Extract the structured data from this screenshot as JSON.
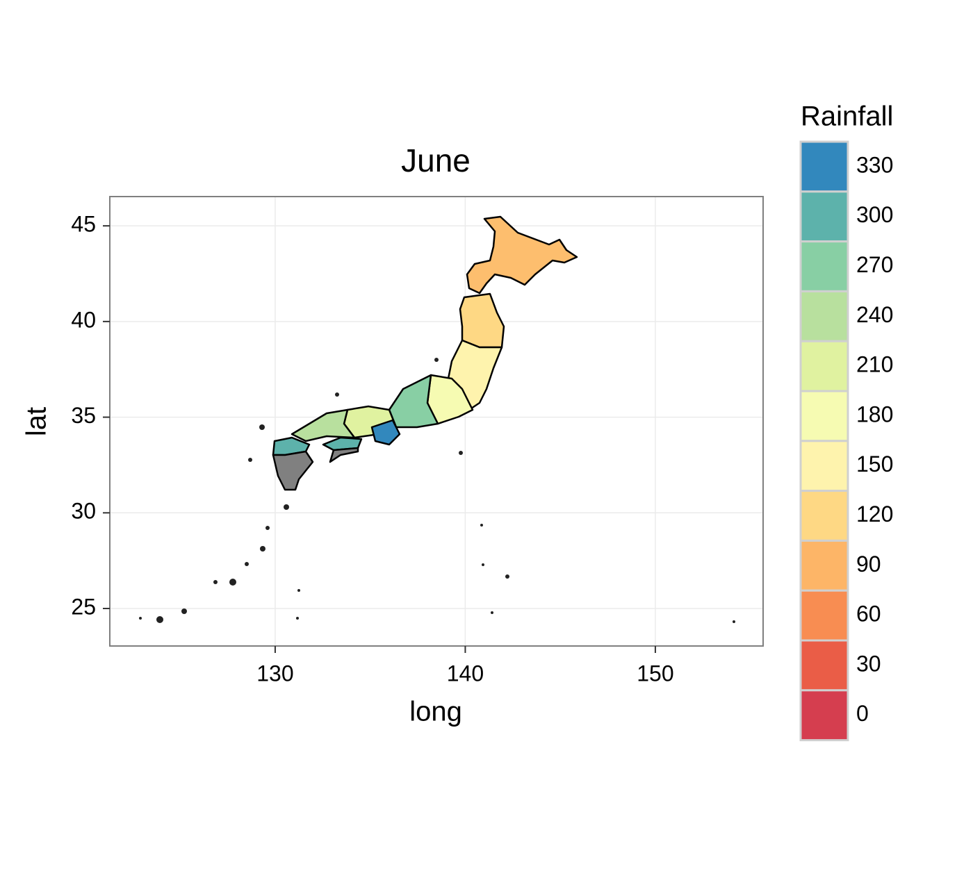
{
  "chart_data": {
    "type": "map",
    "title": "June",
    "xlabel": "long",
    "ylabel": "lat",
    "xlim": [
      121.3,
      155.67
    ],
    "ylim": [
      23.04,
      46.53
    ],
    "xticks": [
      130,
      140,
      150
    ],
    "yticks": [
      25,
      30,
      35,
      40,
      45
    ],
    "grid": true,
    "legend": {
      "title": "Rainfall",
      "breaks": [
        330,
        300,
        270,
        240,
        210,
        180,
        150,
        120,
        90,
        60,
        30,
        0
      ],
      "colors": [
        "#3288bd",
        "#5db2ab",
        "#88cfa4",
        "#b8e09e",
        "#e0f2a0",
        "#f6fbb2",
        "#fef3ad",
        "#fed884",
        "#fdb567",
        "#f88d52",
        "#ea5d47",
        "#d53e4f"
      ]
    }
  }
}
